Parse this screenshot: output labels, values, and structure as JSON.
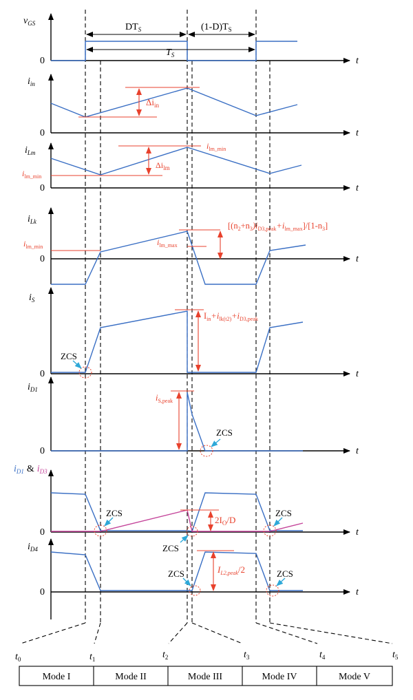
{
  "colors": {
    "waveform": "#3a6fc4",
    "annotation": "#e8412c",
    "zcs_marker": "#2ea8d8",
    "secondary_waveform": "#c4449a",
    "axis": "#000000"
  },
  "panels": {
    "vgs": {
      "label": "v",
      "sub": "GS",
      "zero": "0",
      "axis": "t"
    },
    "iin": {
      "label": "i",
      "sub": "in",
      "zero": "0",
      "axis": "t"
    },
    "ilm": {
      "label": "i",
      "sub": "Lm",
      "zero": "0",
      "axis": "t"
    },
    "ilk": {
      "label": "i",
      "sub": "Lk",
      "zero": "0",
      "axis": "t"
    },
    "is": {
      "label": "i",
      "sub": "S",
      "zero": "0",
      "axis": "t"
    },
    "id1": {
      "label": "i",
      "sub": "D1",
      "zero": "0",
      "axis": "t"
    },
    "id1d3": {
      "label1": "i",
      "sub1": "D1",
      "amp": "&",
      "label2": "i",
      "sub2": "D3",
      "zero": "0",
      "axis": "t"
    },
    "id4": {
      "label": "i",
      "sub": "D4",
      "zero": "0",
      "axis": "t"
    }
  },
  "annotations": {
    "dts": "DT",
    "dts_sub": "S",
    "one_minus_d": "(1-D)T",
    "one_minus_d_sub": "S",
    "ts": "T",
    "ts_sub": "S",
    "delta_iin": "Δi",
    "delta_iin_sub": "in",
    "ilm_min_a": "i",
    "ilm_min_a_sub": "lm_min",
    "delta_ilm": "Δi",
    "delta_ilm_sub": "lm",
    "ilm_min_b": "i",
    "ilm_min_b_sub": "lm_min",
    "ilk_formula": "[(n₂+n₃)iᴅ₃,peak+iₗm_max]/[1-n₃]",
    "ilk_formula_parts": [
      "[(n",
      "2",
      "+n",
      "3",
      ")i",
      "D3,peak",
      "+i",
      "lm_max",
      "]/[1-n",
      "3",
      "]"
    ],
    "ilm_min_c": "i",
    "ilm_min_c_sub": "lm_min",
    "ilm_max": "i",
    "ilm_max_sub": "lm_max",
    "is_formula_parts": [
      "I",
      "in",
      "+i",
      "lk(t2)",
      "+i",
      "D3,peak"
    ],
    "is_peak": "i",
    "is_peak_sub": "S,peak",
    "two_io_d": "2I",
    "two_io_d_sub": "O",
    "two_io_d_tail": "/D",
    "il2_peak": "I",
    "il2_peak_sub": "L2,peak",
    "il2_peak_tail": "/2",
    "zcs": "ZCS"
  },
  "time_labels": [
    {
      "name": "t",
      "sub": "0"
    },
    {
      "name": "t",
      "sub": "1"
    },
    {
      "name": "t",
      "sub": "2"
    },
    {
      "name": "t",
      "sub": "3"
    },
    {
      "name": "t",
      "sub": "4"
    },
    {
      "name": "t",
      "sub": "5"
    }
  ],
  "modes": [
    "Mode I",
    "Mode II",
    "Mode III",
    "Mode IV",
    "Mode V"
  ]
}
